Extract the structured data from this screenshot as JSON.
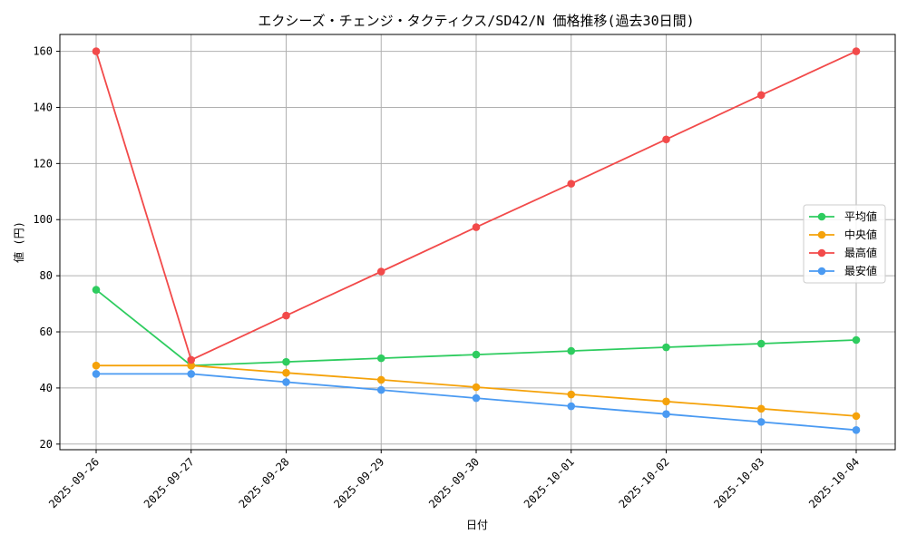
{
  "chart_data": {
    "type": "line",
    "title": "エクシーズ・チェンジ・タクティクス/SD42/N 価格推移(過去30日間)",
    "xlabel": "日付",
    "ylabel": "値 (円)",
    "categories": [
      "2025-09-26",
      "2025-09-27",
      "2025-09-28",
      "2025-09-29",
      "2025-09-30",
      "2025-10-01",
      "2025-10-02",
      "2025-10-03",
      "2025-10-04"
    ],
    "ylim": [
      18,
      166
    ],
    "yticks": [
      20,
      40,
      60,
      80,
      100,
      120,
      140,
      160
    ],
    "grid": true,
    "legend_position": "center-right",
    "series": [
      {
        "name": "平均値",
        "color": "#2ecc5f",
        "values": [
          75,
          48,
          49.3,
          50.6,
          51.9,
          53.2,
          54.5,
          55.8,
          57.1
        ]
      },
      {
        "name": "中央値",
        "color": "#f5a20a",
        "values": [
          48,
          48,
          45.4,
          42.9,
          40.3,
          37.7,
          35.2,
          32.6,
          30
        ]
      },
      {
        "name": "最高値",
        "color": "#f24a4a",
        "values": [
          160,
          50,
          65.8,
          81.5,
          97.3,
          112.8,
          128.6,
          144.4,
          160
        ]
      },
      {
        "name": "最安値",
        "color": "#4a9af2",
        "values": [
          45,
          45,
          42.1,
          39.3,
          36.4,
          33.5,
          30.7,
          27.9,
          25
        ]
      }
    ]
  }
}
